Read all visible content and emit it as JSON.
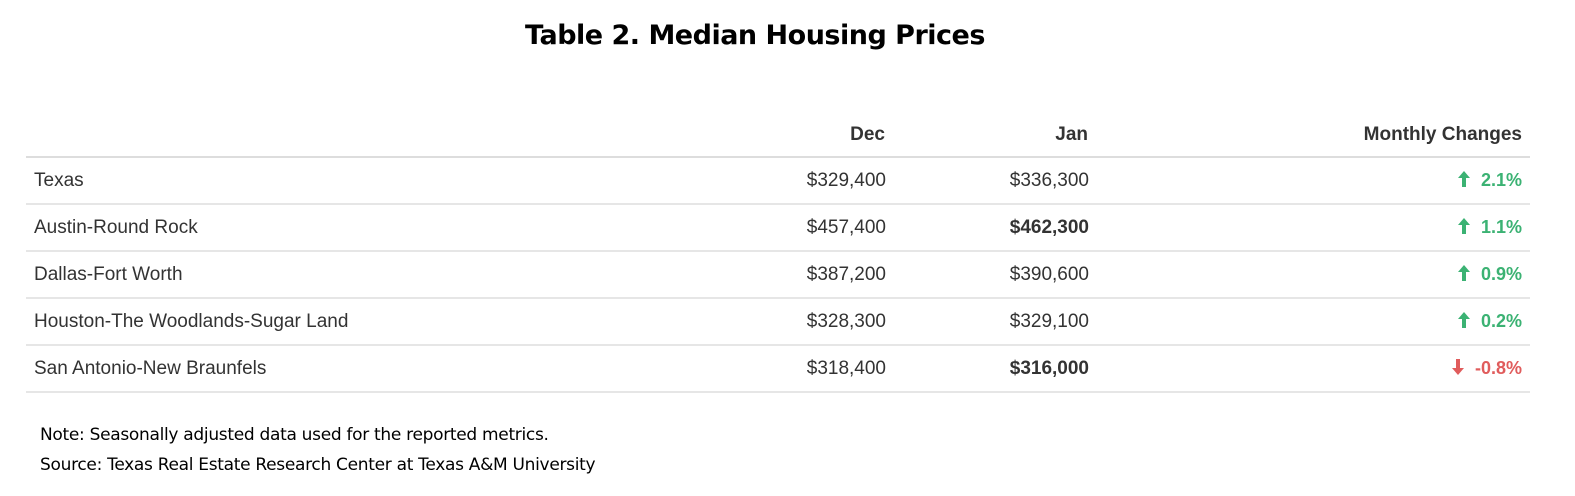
{
  "title": "Table 2. Median Housing Prices",
  "chart_data": {
    "type": "table",
    "title": "Table 2. Median Housing Prices",
    "columns": [
      "",
      "Dec",
      "Jan",
      "Monthly Changes"
    ],
    "rows": [
      {
        "region": "Texas",
        "dec": "$329,400",
        "jan": "$336,300",
        "jan_bold": false,
        "change": "2.1%",
        "direction": "up"
      },
      {
        "region": "Austin-Round Rock",
        "dec": "$457,400",
        "jan": "$462,300",
        "jan_bold": true,
        "change": "1.1%",
        "direction": "up"
      },
      {
        "region": "Dallas-Fort Worth",
        "dec": "$387,200",
        "jan": "$390,600",
        "jan_bold": false,
        "change": "0.9%",
        "direction": "up"
      },
      {
        "region": "Houston-The Woodlands-Sugar Land",
        "dec": "$328,300",
        "jan": "$329,100",
        "jan_bold": false,
        "change": "0.2%",
        "direction": "up"
      },
      {
        "region": "San Antonio-New Braunfels",
        "dec": "$318,400",
        "jan": "$316,000",
        "jan_bold": true,
        "change": "-0.8%",
        "direction": "down"
      }
    ],
    "colors": {
      "up": "#3bb273",
      "down": "#e05c5c"
    }
  },
  "notes": {
    "note": "Note: Seasonally adjusted data used for the reported metrics.",
    "source": "Source: Texas Real Estate Research Center at Texas A&M University"
  },
  "icons": {
    "up": "arrow-up-icon",
    "down": "arrow-down-icon"
  }
}
